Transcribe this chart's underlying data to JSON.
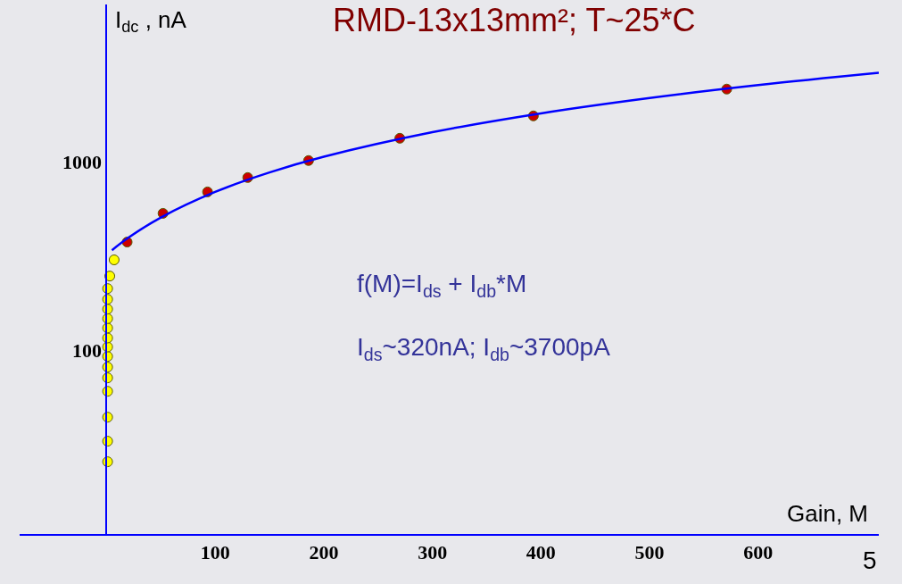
{
  "chart_data": {
    "type": "scatter",
    "title": "RMD-13x13mm²; T~25*C",
    "xlabel": "Gain, M",
    "ylabel": "I$_{dc}$ , nA",
    "annotations": [
      "f(M)=I$_{ds}$ + I$_{db}$*M",
      "I$_{ds}$~320nA; I$_{db}$~3700pA",
      "5"
    ],
    "log": "y",
    "xlim": [
      -80,
      711
    ],
    "ylim": [
      10.6,
      6800
    ],
    "xticks": [
      100,
      200,
      300,
      400,
      500,
      600
    ],
    "yticks": [
      100,
      1000
    ],
    "marker": "circle",
    "legend": false,
    "series": [
      {
        "color": "#ffff00",
        "x": [
          1,
          1,
          1,
          1,
          1,
          1,
          1,
          1,
          1,
          1,
          1,
          1,
          1,
          1,
          3,
          7
        ],
        "values": [
          25.6,
          32.9,
          44.1,
          60.5,
          71.3,
          81.3,
          92.6,
          104,
          116,
          131,
          147,
          165,
          186,
          212,
          247,
          301
        ]
      },
      {
        "color": "#cc0000",
        "x": [
          19,
          52,
          93,
          130,
          186,
          270,
          393,
          571
        ],
        "values": [
          374,
          531,
          690,
          822,
          1012,
          1328,
          1745,
          2421
        ]
      },
      {
        "type": "line",
        "color": "#0000ff",
        "marker": "none",
        "x": [
          5,
          20,
          50,
          100,
          150,
          200,
          300,
          400,
          500,
          600,
          711
        ],
        "values": [
          338.5,
          394,
          505,
          690,
          875,
          1060,
          1430,
          1800,
          2170,
          2540,
          2951
        ]
      }
    ]
  }
}
